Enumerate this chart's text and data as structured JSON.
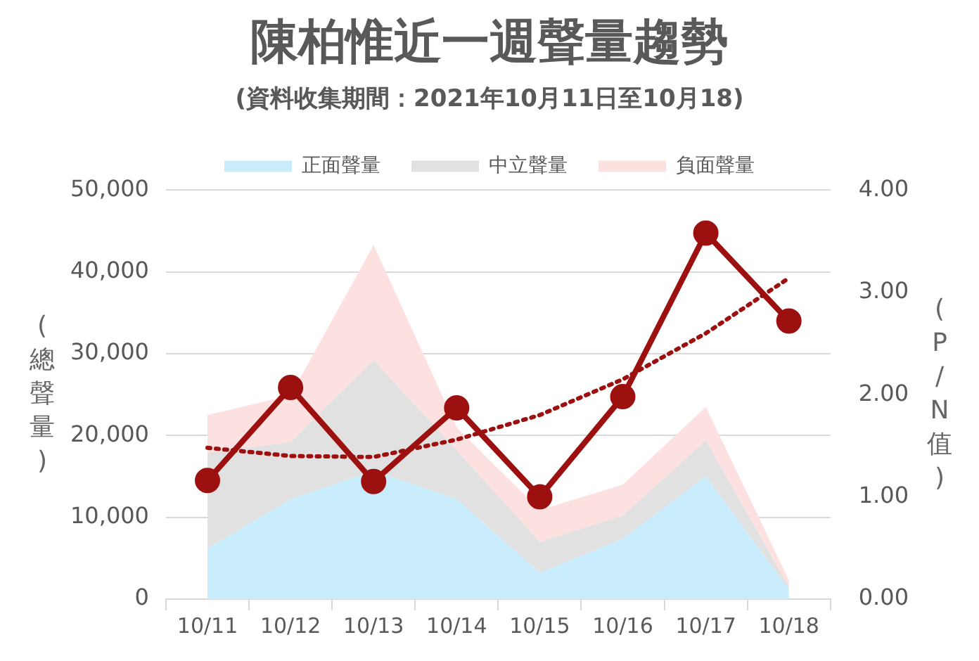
{
  "chart_data": {
    "type": "area",
    "title": "陳柏惟近一週聲量趨勢",
    "subtitle": "(資料收集期間：2021年10月11日至10月18)",
    "ylabel": "(總聲量)",
    "y2label": "(P/N值)",
    "categories": [
      "10/11",
      "10/12",
      "10/13",
      "10/14",
      "10/15",
      "10/16",
      "10/17",
      "10/18"
    ],
    "series": [
      {
        "name": "正面聲量",
        "color": "#c8ecfb",
        "values": [
          6200,
          12200,
          15700,
          12200,
          3200,
          7400,
          15000,
          1200
        ]
      },
      {
        "name": "中立聲量",
        "color": "#e1e1e1",
        "values": [
          11700,
          7000,
          13500,
          6000,
          3800,
          2800,
          4400,
          300
        ]
      },
      {
        "name": "負面聲量",
        "color": "#fde0e0",
        "values": [
          4600,
          5700,
          14100,
          2800,
          3900,
          3800,
          4100,
          800
        ]
      },
      {
        "type": "line",
        "axis": "y2",
        "color": "#9c1010",
        "marker": "circle",
        "values": [
          1.16,
          2.07,
          1.15,
          1.87,
          1.0,
          1.98,
          3.58,
          2.72
        ]
      },
      {
        "type": "line",
        "axis": "y2",
        "color": "#9c1010",
        "marker": "none",
        "line_style": "dotted",
        "values": [
          1.48,
          1.4,
          1.39,
          1.56,
          1.8,
          2.15,
          2.6,
          3.14
        ]
      }
    ],
    "stacked": true,
    "ylim": [
      0,
      50000
    ],
    "yticks": [
      0,
      {
        "value": 10000,
        "label": "10,000"
      },
      {
        "value": 20000,
        "label": "20,000"
      },
      {
        "value": 30000,
        "label": "30,000"
      },
      {
        "value": 40000,
        "label": "40,000"
      },
      {
        "value": 50000,
        "label": "50,000"
      }
    ],
    "y2lim": [
      0,
      4
    ],
    "y2ticks": [
      {
        "value": 0,
        "label": "0.00"
      },
      {
        "value": 1,
        "label": "1.00"
      },
      {
        "value": 2,
        "label": "2.00"
      },
      {
        "value": 3,
        "label": "3.00"
      },
      {
        "value": 4,
        "label": "4.00"
      }
    ],
    "grid": "y",
    "legend": "top"
  }
}
